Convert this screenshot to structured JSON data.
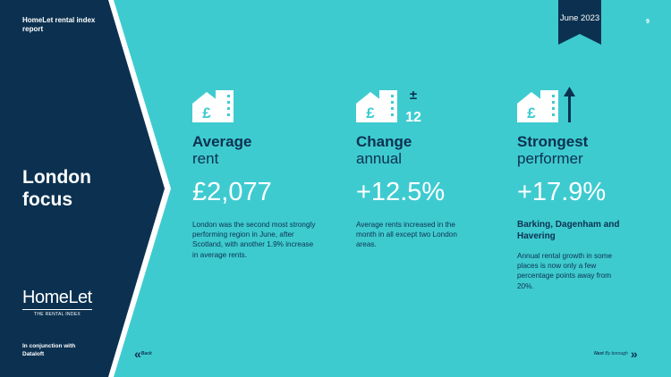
{
  "sidebar": {
    "report_title": "HomeLet rental index report",
    "focus_title": "London focus",
    "logo_word": "HomeLet",
    "logo_sub": "THE RENTAL INDEX",
    "conjunction": "In conjunction with Dataloft"
  },
  "header": {
    "date": "June 2023",
    "page_number": "9"
  },
  "navigation": {
    "back_label": "Back",
    "next_label": "Next",
    "next_sub_label": "By borough",
    "back_arrow": "«",
    "next_arrow": "»"
  },
  "metrics": [
    {
      "icon": "house-pound-icon",
      "title": "Average",
      "subtitle": "rent",
      "value": "£2,077",
      "description": "London was the second most strongly performing region in June, after Scotland, with another 1.9% increase in average rents."
    },
    {
      "icon": "house-pound-change-icon",
      "title": "Change",
      "subtitle": "annual",
      "value": "+12.5%",
      "icon_badge": "12",
      "icon_sign": "±",
      "description": "Average rents increased in the month in all except two London areas."
    },
    {
      "icon": "house-pound-up-arrow-icon",
      "title": "Strongest",
      "subtitle": "performer",
      "value": "+17.9%",
      "area": "Barking, Dagenham and Havering",
      "description": "Annual rental growth in some places is now only a few percentage points away from 20%."
    }
  ],
  "colors": {
    "background": "#3ecbd0",
    "navy": "#0c3150",
    "white": "#ffffff"
  }
}
